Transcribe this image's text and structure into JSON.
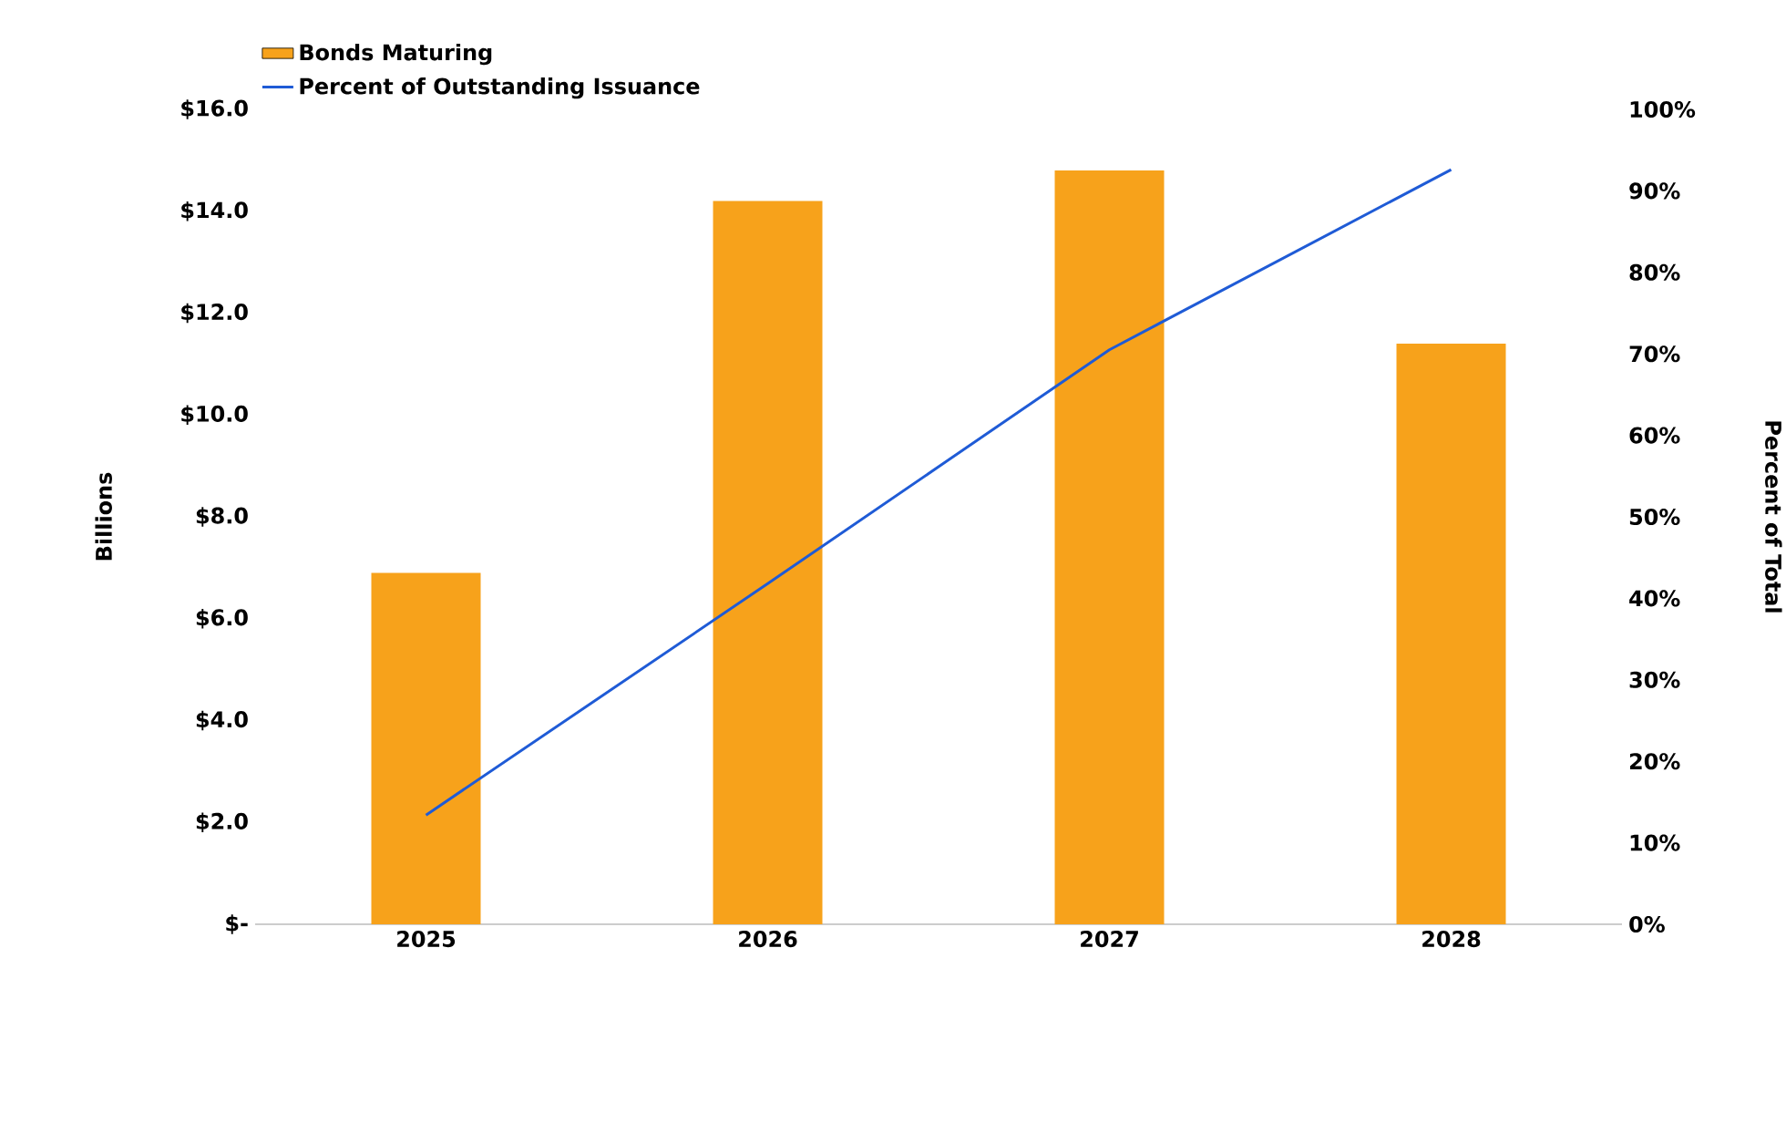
{
  "chart_data": {
    "type": "bar",
    "categories": [
      "2025",
      "2026",
      "2027",
      "2028"
    ],
    "series": [
      {
        "name": "Bonds Maturing",
        "color": "#f7a21b",
        "values": [
          6.9,
          14.2,
          14.8,
          11.4
        ]
      },
      {
        "name": "Percent of Outstanding Issuance",
        "type": "line",
        "axis": "y2",
        "color": "#1f5bd6",
        "values": [
          13.4,
          41.8,
          70.5,
          92.6
        ]
      }
    ],
    "ylabel": "Billions",
    "y2label": "Percent of Total",
    "ylim": [
      0,
      16
    ],
    "yticks": [
      {
        "value": 0,
        "label": "$-"
      },
      {
        "value": 2,
        "label": "$2.0"
      },
      {
        "value": 4,
        "label": "$4.0"
      },
      {
        "value": 6,
        "label": "$6.0"
      },
      {
        "value": 8,
        "label": "$8.0"
      },
      {
        "value": 10,
        "label": "$10.0"
      },
      {
        "value": 12,
        "label": "$12.0"
      },
      {
        "value": 14,
        "label": "$14.0"
      },
      {
        "value": 16,
        "label": "$16.0"
      }
    ],
    "y2lim": [
      0,
      100
    ],
    "y2ticks": [
      {
        "value": 0,
        "label": "0%"
      },
      {
        "value": 10,
        "label": "10%"
      },
      {
        "value": 20,
        "label": "20%"
      },
      {
        "value": 30,
        "label": "30%"
      },
      {
        "value": 40,
        "label": "40%"
      },
      {
        "value": 50,
        "label": "50%"
      },
      {
        "value": 60,
        "label": "60%"
      },
      {
        "value": 70,
        "label": "70%"
      },
      {
        "value": 80,
        "label": "80%"
      },
      {
        "value": 90,
        "label": "90%"
      },
      {
        "value": 100,
        "label": "100%"
      }
    ],
    "legend": "top left",
    "grid": false,
    "marker": "none",
    "line_style": "solid"
  }
}
